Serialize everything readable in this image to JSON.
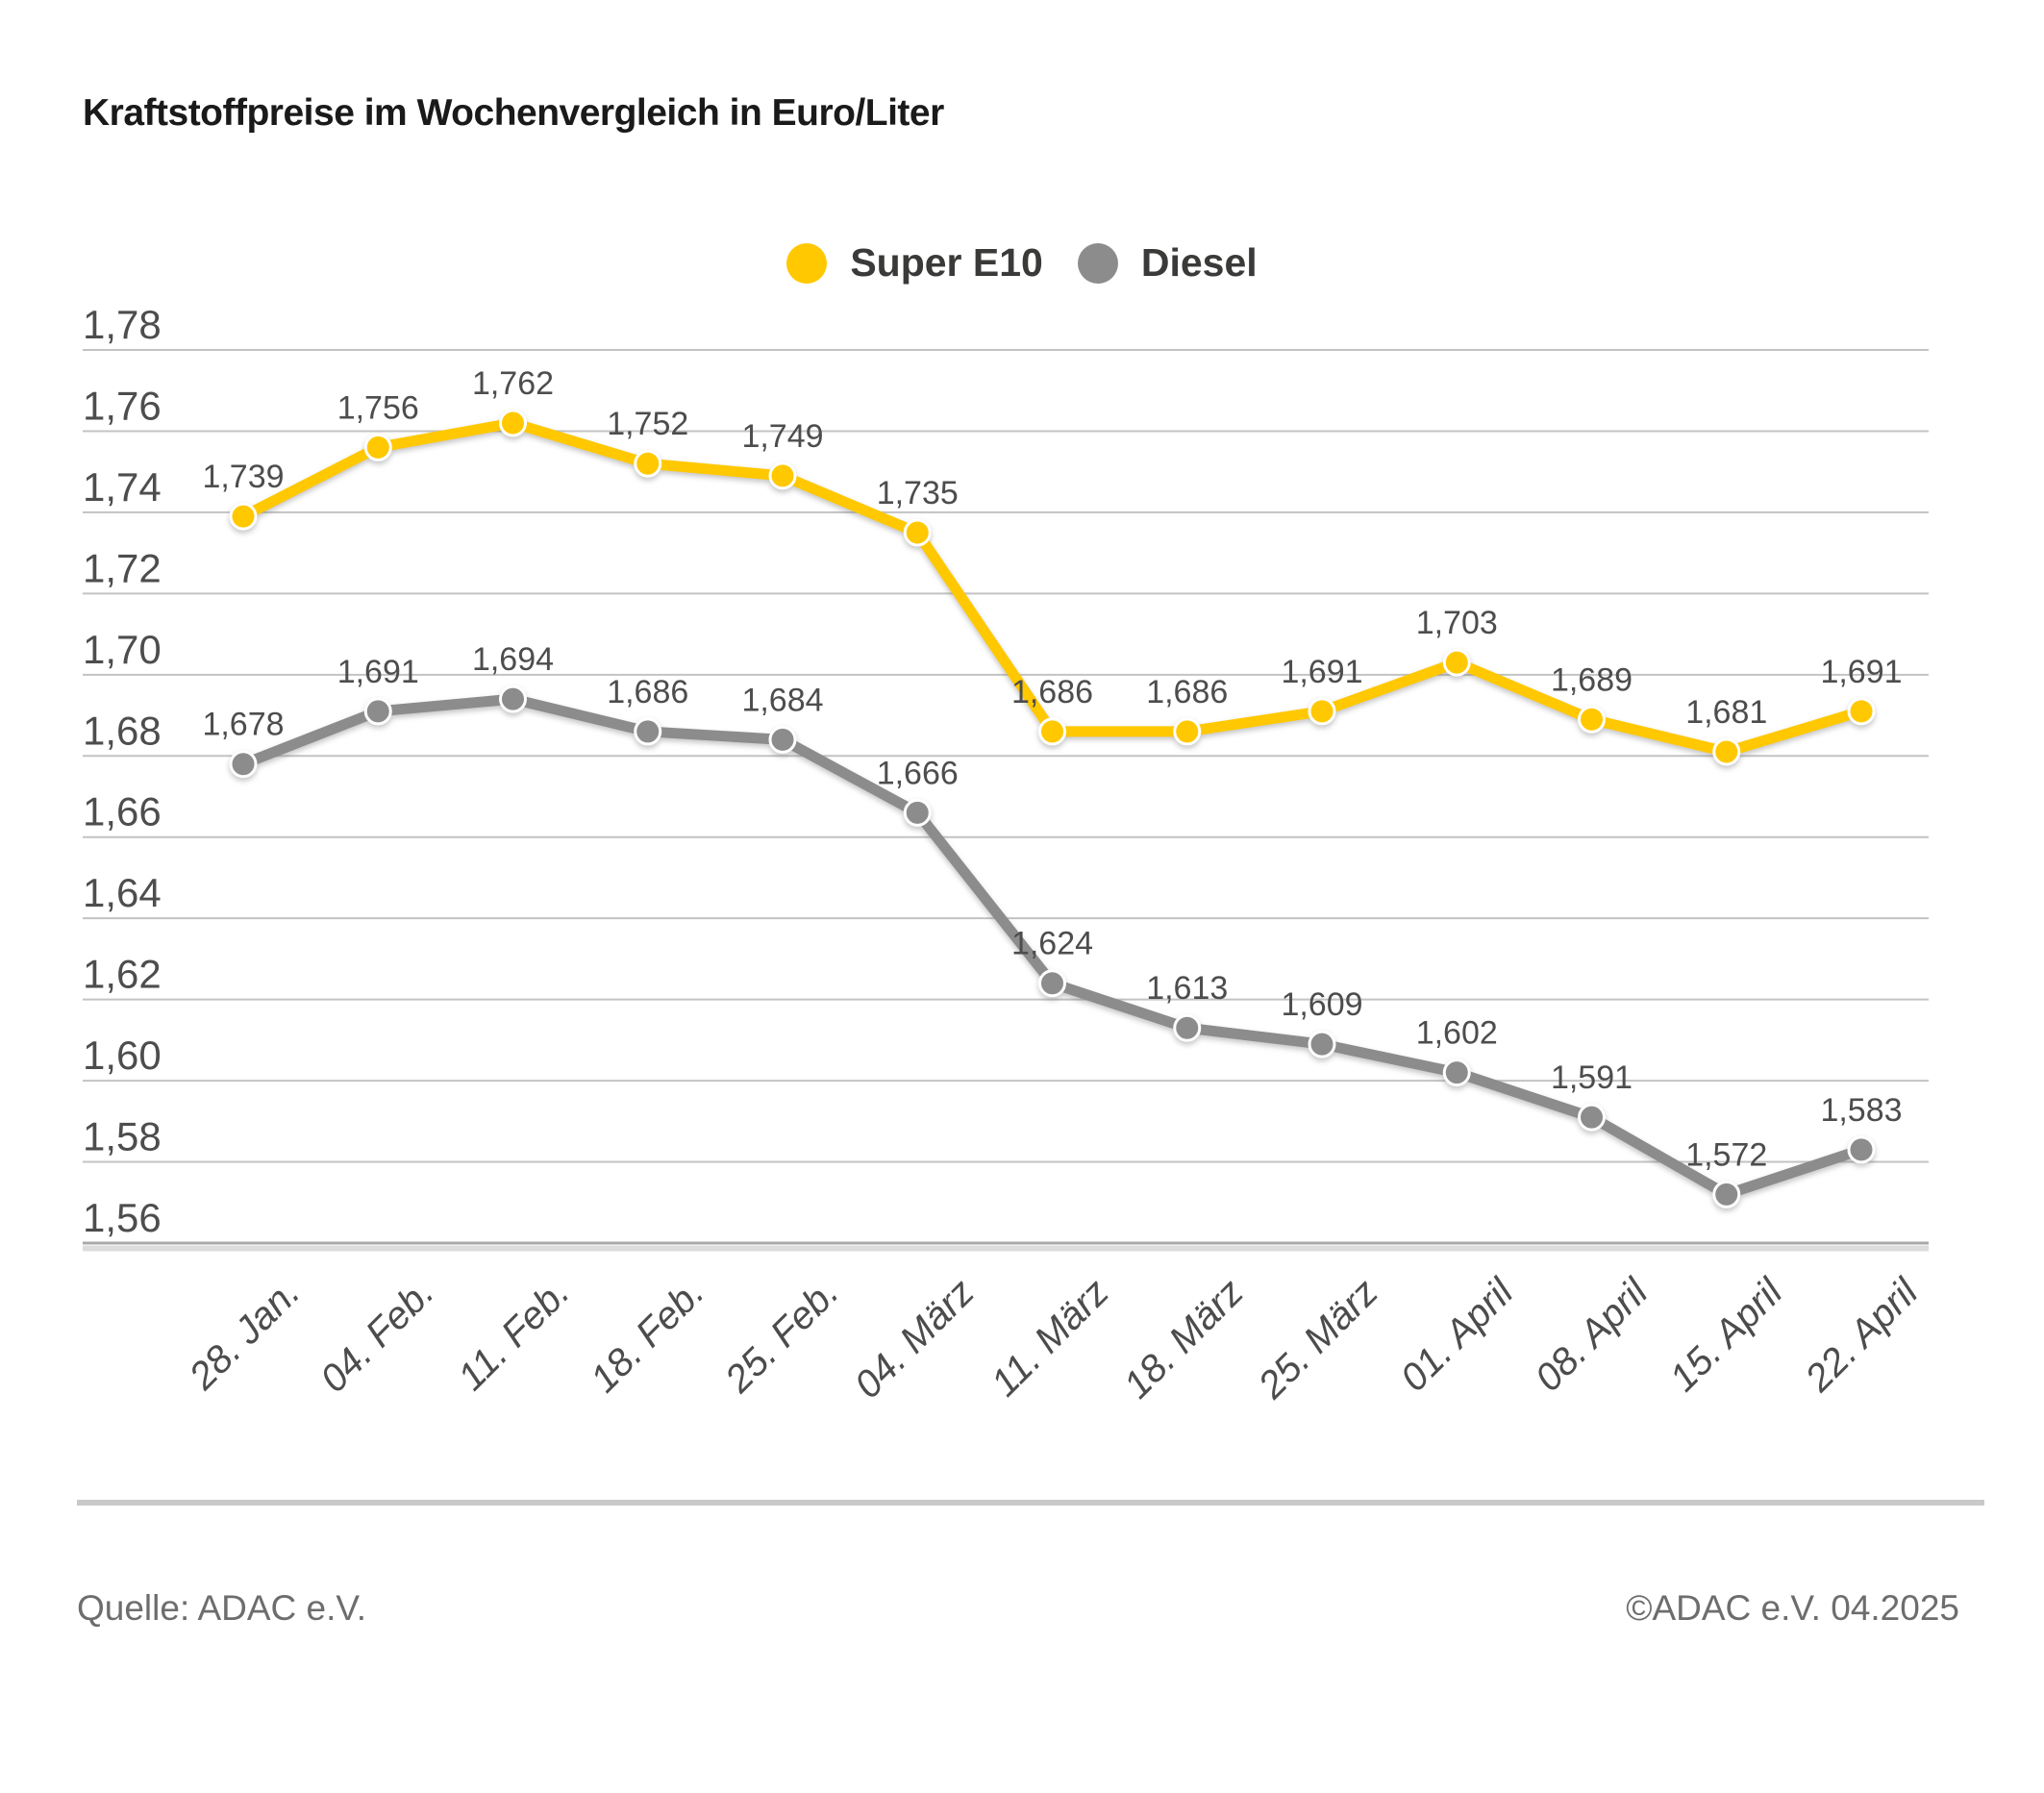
{
  "title": "Kraftstoffpreise im Wochenvergleich in Euro/Liter",
  "legend": {
    "items": [
      {
        "label": "Super E10",
        "color": "#FFC800"
      },
      {
        "label": "Diesel",
        "color": "#8C8C8C"
      }
    ]
  },
  "footer": {
    "source": "Quelle: ADAC e.V.",
    "copyright": "©ADAC e.V. 04.2025"
  },
  "chart_data": {
    "type": "line",
    "title": "Kraftstoffpreise im Wochenvergleich in Euro/Liter",
    "unit": "Euro/Liter",
    "categories": [
      "28. Jan.",
      "04. Feb.",
      "11. Feb.",
      "18. Feb.",
      "25. Feb.",
      "04. März",
      "11. März",
      "18. März",
      "25. März",
      "01. April",
      "08. April",
      "15. April",
      "22. April"
    ],
    "series": [
      {
        "name": "Super E10",
        "color": "#FFC800",
        "values": [
          1.739,
          1.756,
          1.762,
          1.752,
          1.749,
          1.735,
          1.686,
          1.686,
          1.691,
          1.703,
          1.689,
          1.681,
          1.691
        ],
        "labels": [
          "1,739",
          "1,756",
          "1,762",
          "1,752",
          "1,749",
          "1,735",
          "1,686",
          "1,686",
          "1,691",
          "1,703",
          "1,689",
          "1,681",
          "1,691"
        ]
      },
      {
        "name": "Diesel",
        "color": "#8C8C8C",
        "values": [
          1.678,
          1.691,
          1.694,
          1.686,
          1.684,
          1.666,
          1.624,
          1.613,
          1.609,
          1.602,
          1.591,
          1.572,
          1.583
        ],
        "labels": [
          "1,678",
          "1,691",
          "1,694",
          "1,686",
          "1,684",
          "1,666",
          "1,624",
          "1,613",
          "1,609",
          "1,602",
          "1,591",
          "1,572",
          "1,583"
        ]
      }
    ],
    "yticks": [
      {
        "value": 1.78,
        "label": "1,78"
      },
      {
        "value": 1.76,
        "label": "1,76"
      },
      {
        "value": 1.74,
        "label": "1,74"
      },
      {
        "value": 1.72,
        "label": "1,72"
      },
      {
        "value": 1.7,
        "label": "1,70"
      },
      {
        "value": 1.68,
        "label": "1,68"
      },
      {
        "value": 1.66,
        "label": "1,66"
      },
      {
        "value": 1.64,
        "label": "1,64"
      },
      {
        "value": 1.62,
        "label": "1,62"
      },
      {
        "value": 1.6,
        "label": "1,60"
      },
      {
        "value": 1.58,
        "label": "1,58"
      },
      {
        "value": 1.56,
        "label": "1,56"
      }
    ],
    "ylim": [
      1.56,
      1.78
    ],
    "grid": true,
    "legend_position": "top-center"
  }
}
